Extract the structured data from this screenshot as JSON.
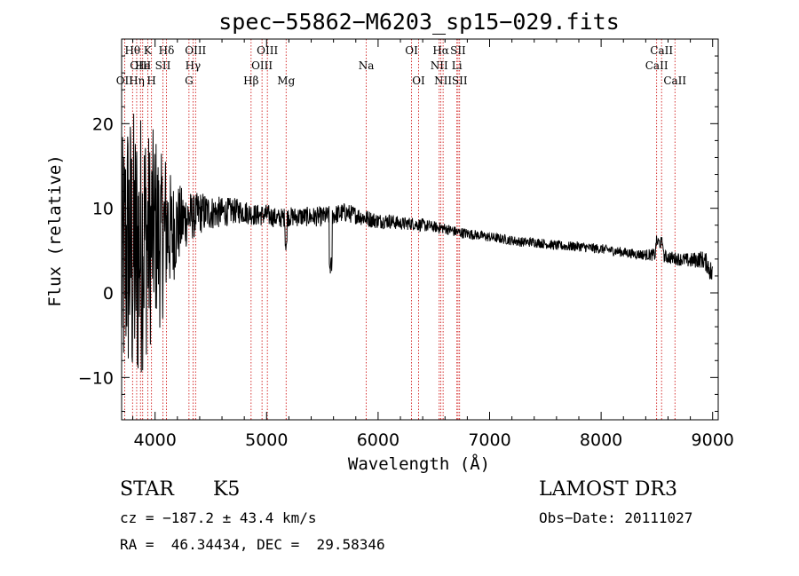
{
  "chart_data": {
    "type": "line",
    "title": "spec−55862−M6203_sp15−029.fits",
    "xlabel": "Wavelength (Å)",
    "ylabel": "Flux (relative)",
    "xlim": [
      3700,
      9050
    ],
    "ylim": [
      -15,
      30
    ],
    "xticks": [
      4000,
      5000,
      6000,
      7000,
      8000,
      9000
    ],
    "yticks": [
      -10,
      0,
      10,
      20
    ],
    "grid": false,
    "spectrum": {
      "name": "flux",
      "x": [
        3700,
        3750,
        3800,
        3850,
        3900,
        3950,
        4000,
        4050,
        4100,
        4150,
        4200,
        4250,
        4300,
        4350,
        4400,
        4450,
        4500,
        4600,
        4700,
        4800,
        4900,
        5000,
        5100,
        5200,
        5300,
        5400,
        5500,
        5600,
        5700,
        5800,
        5900,
        6000,
        6100,
        6200,
        6300,
        6400,
        6500,
        6600,
        6700,
        6800,
        6900,
        7000,
        7100,
        7200,
        7300,
        7400,
        7500,
        7600,
        7700,
        7800,
        7900,
        8000,
        8100,
        8200,
        8300,
        8400,
        8500,
        8600,
        8700,
        8800,
        8900,
        8950,
        9000
      ],
      "y": [
        2,
        6,
        4,
        5,
        7,
        6,
        8,
        6,
        8,
        7,
        8,
        8.5,
        9,
        9,
        9.5,
        9.5,
        9.5,
        9.5,
        9.7,
        9.6,
        9.2,
        9.2,
        8.8,
        9,
        9,
        9,
        9,
        9.2,
        9.5,
        9.2,
        8.8,
        8.5,
        8.5,
        8.2,
        8.2,
        8,
        7.8,
        7.6,
        7.2,
        7,
        6.8,
        6.6,
        6.4,
        6.2,
        6,
        6,
        5.8,
        5.6,
        5.5,
        5.5,
        5.3,
        5.2,
        5,
        4.8,
        4.6,
        4.5,
        4.5,
        4.2,
        4,
        3.8,
        4,
        3.5,
        2
      ],
      "noise": [
        12,
        13,
        14,
        13,
        12,
        10,
        9,
        8,
        7,
        5,
        4,
        3,
        2.5,
        2,
        2,
        1.8,
        1.6,
        1.4,
        1.2,
        1.1,
        1,
        1,
        0.9,
        0.9,
        0.9,
        0.9,
        0.9,
        0.9,
        0.9,
        0.8,
        0.8,
        0.7,
        0.7,
        0.6,
        0.6,
        0.6,
        0.5,
        0.5,
        0.5,
        0.5,
        0.45,
        0.45,
        0.45,
        0.45,
        0.45,
        0.45,
        0.45,
        0.45,
        0.45,
        0.45,
        0.45,
        0.45,
        0.45,
        0.45,
        0.45,
        0.5,
        0.6,
        0.6,
        0.6,
        0.7,
        0.8,
        0.9,
        1.2
      ]
    },
    "line_markers": [
      {
        "label": "Hθ",
        "wavelength": 3798,
        "row": 0
      },
      {
        "label": "OII",
        "wavelength": 3727,
        "row": 2
      },
      {
        "label": "OIII",
        "wavelength": 3869,
        "row": 1
      },
      {
        "label": "K",
        "wavelength": 3934,
        "row": 0
      },
      {
        "label": "Hη",
        "wavelength": 3835,
        "row": 2
      },
      {
        "label": "He",
        "wavelength": 3889,
        "row": 1
      },
      {
        "label": "H",
        "wavelength": 3968,
        "row": 2
      },
      {
        "label": "SII",
        "wavelength": 4070,
        "row": 1
      },
      {
        "label": "Hδ",
        "wavelength": 4102,
        "row": 0
      },
      {
        "label": "OIII",
        "wavelength": 4363,
        "row": 0
      },
      {
        "label": "Hγ",
        "wavelength": 4340,
        "row": 1
      },
      {
        "label": "G",
        "wavelength": 4304,
        "row": 2
      },
      {
        "label": "Hβ",
        "wavelength": 4861,
        "row": 2
      },
      {
        "label": "OIII",
        "wavelength": 5007,
        "row": 0
      },
      {
        "label": "OIII",
        "wavelength": 4959,
        "row": 1
      },
      {
        "label": "Mg",
        "wavelength": 5175,
        "row": 2
      },
      {
        "label": "Na",
        "wavelength": 5894,
        "row": 1
      },
      {
        "label": "OI",
        "wavelength": 6300,
        "row": 0
      },
      {
        "label": "OI",
        "wavelength": 6363,
        "row": 2
      },
      {
        "label": "Hα",
        "wavelength": 6563,
        "row": 0
      },
      {
        "label": "NII",
        "wavelength": 6548,
        "row": 1
      },
      {
        "label": "NII",
        "wavelength": 6583,
        "row": 2
      },
      {
        "label": "SII",
        "wavelength": 6717,
        "row": 0
      },
      {
        "label": "Li",
        "wavelength": 6707,
        "row": 1
      },
      {
        "label": "SII",
        "wavelength": 6731,
        "row": 2
      },
      {
        "label": "CaII",
        "wavelength": 8542,
        "row": 0
      },
      {
        "label": "CaII",
        "wavelength": 8498,
        "row": 1
      },
      {
        "label": "CaII",
        "wavelength": 8662,
        "row": 2
      }
    ]
  },
  "info": {
    "class": "STAR",
    "subclass": "K5",
    "survey": "LAMOST DR3",
    "cz": "cz = −187.2 ± 43.4 km/s",
    "obs_date": "Obs−Date: 20111027",
    "coords": "RA =  46.34434, DEC =  29.58346"
  },
  "colors": {
    "axis": "#000000",
    "spectrum": "#000000",
    "marker": "#cc0000"
  }
}
